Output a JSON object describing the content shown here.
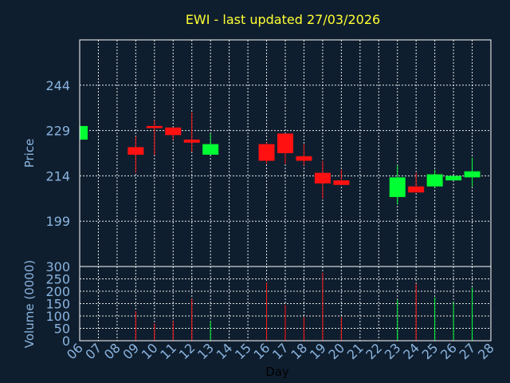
{
  "title": "EWI - last updated 27/03/2026",
  "chart_data": [
    {
      "type": "candlestick",
      "ylabel": "Price",
      "ylim": [
        184,
        259
      ],
      "yticks": [
        199,
        214,
        229,
        244
      ],
      "grid": true,
      "candles": [
        {
          "day": "06",
          "open": 226,
          "close": 230.5,
          "high": 230.5,
          "low": 226
        },
        {
          "day": "09",
          "open": 223.5,
          "close": 221,
          "high": 227,
          "low": 215
        },
        {
          "day": "10",
          "open": 230.5,
          "close": 229.8,
          "high": 232.5,
          "low": 221
        },
        {
          "day": "11",
          "open": 230,
          "close": 227.5,
          "high": 230,
          "low": 226
        },
        {
          "day": "12",
          "open": 226,
          "close": 225,
          "high": 235,
          "low": 222
        },
        {
          "day": "13",
          "open": 221,
          "close": 224.5,
          "high": 228,
          "low": 221
        },
        {
          "day": "16",
          "open": 224.5,
          "close": 219,
          "high": 225,
          "low": 218
        },
        {
          "day": "17",
          "open": 228,
          "close": 221.5,
          "high": 228,
          "low": 218
        },
        {
          "day": "18",
          "open": 220.5,
          "close": 219,
          "high": 224.5,
          "low": 217.5
        },
        {
          "day": "19",
          "open": 215,
          "close": 211.5,
          "high": 219,
          "low": 206.5
        },
        {
          "day": "20",
          "open": 212.5,
          "close": 211,
          "high": 216,
          "low": 211
        },
        {
          "day": "23",
          "open": 207,
          "close": 213.5,
          "high": 217.5,
          "low": 204.5
        },
        {
          "day": "24",
          "open": 210.5,
          "close": 208.5,
          "high": 215,
          "low": 208.5
        },
        {
          "day": "25",
          "open": 210.5,
          "close": 214.5,
          "high": 216,
          "low": 210
        },
        {
          "day": "26",
          "open": 212.5,
          "close": 214,
          "high": 214,
          "low": 212.5
        },
        {
          "day": "27",
          "open": 213.5,
          "close": 215.5,
          "high": 220,
          "low": 210.5
        }
      ]
    },
    {
      "type": "bar",
      "ylabel": "Volume (0000)",
      "xlabel": "Day",
      "ylim": [
        0,
        300
      ],
      "yticks": [
        0,
        50,
        100,
        150,
        200,
        250,
        300
      ],
      "grid": true,
      "categories": [
        "06",
        "07",
        "08",
        "09",
        "10",
        "11",
        "12",
        "13",
        "14",
        "15",
        "16",
        "17",
        "18",
        "19",
        "20",
        "21",
        "22",
        "23",
        "24",
        "25",
        "26",
        "27",
        "28"
      ],
      "volumes": [
        {
          "day": "09",
          "value": 120
        },
        {
          "day": "10",
          "value": 70
        },
        {
          "day": "11",
          "value": 80
        },
        {
          "day": "12",
          "value": 170
        },
        {
          "day": "13",
          "value": 80
        },
        {
          "day": "16",
          "value": 235
        },
        {
          "day": "17",
          "value": 145
        },
        {
          "day": "18",
          "value": 95
        },
        {
          "day": "19",
          "value": 275
        },
        {
          "day": "20",
          "value": 95
        },
        {
          "day": "23",
          "value": 165
        },
        {
          "day": "24",
          "value": 230
        },
        {
          "day": "25",
          "value": 175
        },
        {
          "day": "26",
          "value": 155
        },
        {
          "day": "27",
          "value": 215
        }
      ]
    }
  ],
  "colors": {
    "background": "#0f1e2e",
    "up": "#00ff33",
    "down": "#ff1111",
    "text": "#8ab4e0",
    "title": "#ffff33",
    "grid": "#ffffff"
  }
}
